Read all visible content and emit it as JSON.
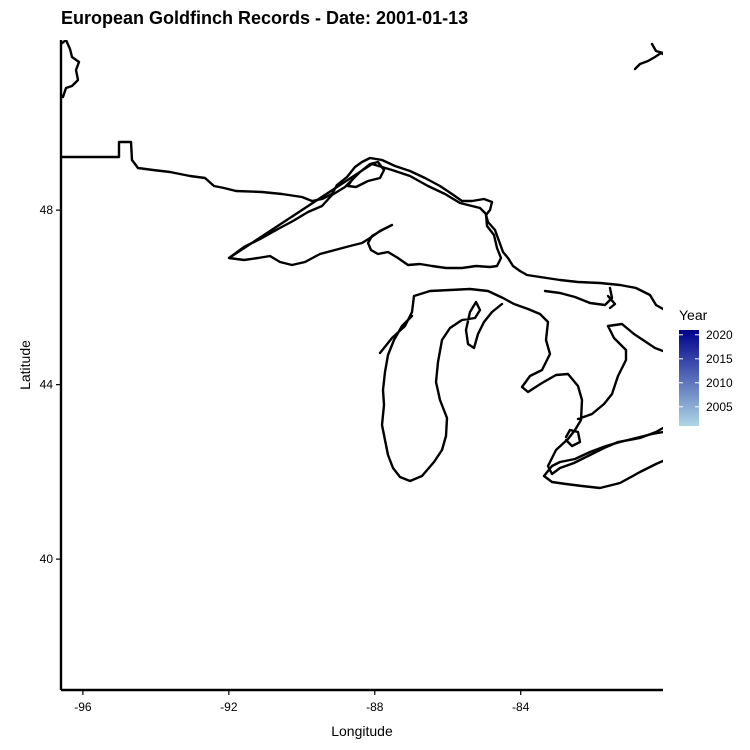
{
  "chart_data": {
    "type": "map",
    "title": "European Goldfinch Records - Date: 2001-01-13",
    "xlabel": "Longitude",
    "ylabel": "Latitude",
    "xlim": [
      -96.6,
      -80.1
    ],
    "ylim": [
      37.0,
      51.9
    ],
    "x_ticks": [
      -96,
      -92,
      -88,
      -84
    ],
    "y_ticks": [
      40,
      44,
      48
    ],
    "x_tick_labels": [
      "-96",
      "-92",
      "-88",
      "-84"
    ],
    "y_tick_labels": [
      "40",
      "44",
      "48"
    ],
    "grid": false,
    "points": [],
    "legend": {
      "title": "Year",
      "placement": "right",
      "min": 2001,
      "max": 2021,
      "labels": [
        "2020",
        "2015",
        "2010",
        "2005"
      ],
      "values": [
        2020,
        2015,
        2010,
        2005
      ],
      "color_low": "#add8e6",
      "color_high": "#00008b"
    }
  }
}
